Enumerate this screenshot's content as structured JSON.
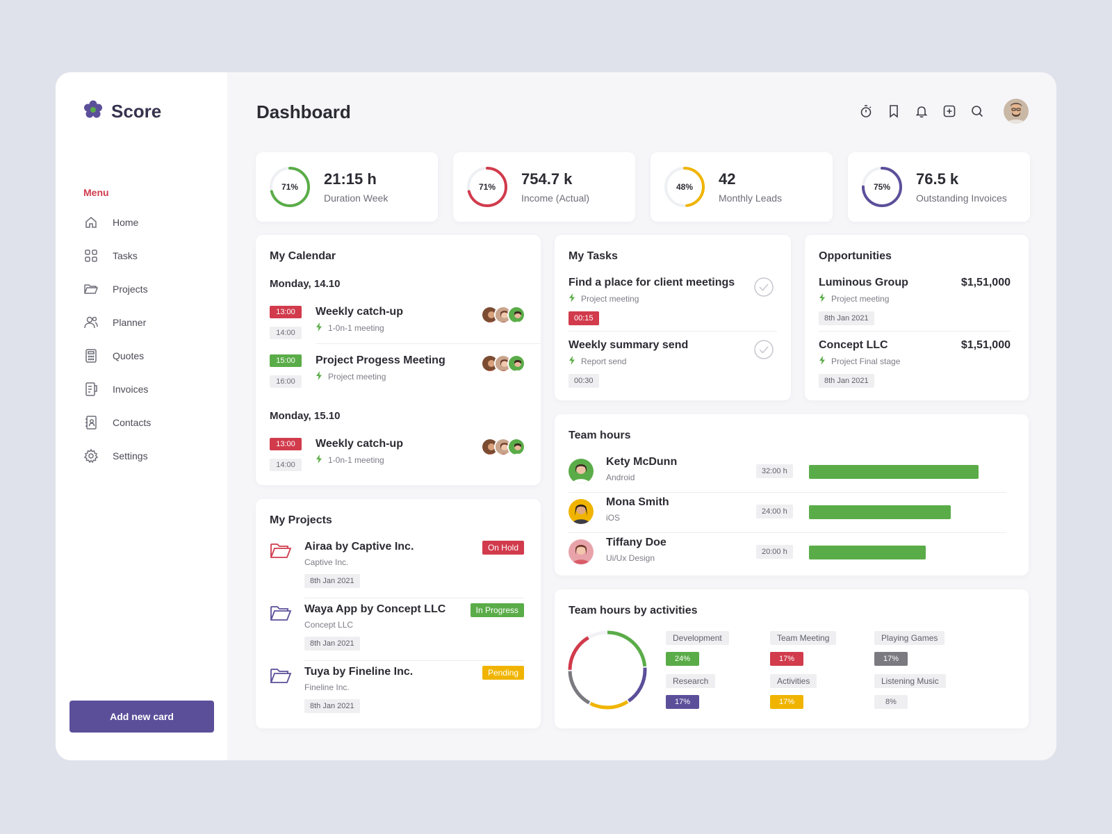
{
  "brand": {
    "name": "Score",
    "color": "#5c4f9a"
  },
  "sidebar": {
    "menu_label": "Menu",
    "items": [
      {
        "label": "Home",
        "icon": "home-icon"
      },
      {
        "label": "Tasks",
        "icon": "grid-icon"
      },
      {
        "label": "Projects",
        "icon": "folder-icon"
      },
      {
        "label": "Planner",
        "icon": "users-icon"
      },
      {
        "label": "Quotes",
        "icon": "calculator-icon"
      },
      {
        "label": "Invoices",
        "icon": "invoice-icon"
      },
      {
        "label": "Contacts",
        "icon": "contacts-icon"
      },
      {
        "label": "Settings",
        "icon": "gear-icon"
      }
    ],
    "add_button": "Add new card"
  },
  "header": {
    "title": "Dashboard",
    "icons": [
      "timer-icon",
      "bookmark-icon",
      "bell-icon",
      "add-square-icon",
      "search-icon"
    ]
  },
  "kpis": [
    {
      "percent_label": "71%",
      "percent": 71,
      "color": "#5aac48",
      "value": "21:15 h",
      "label": "Duration Week"
    },
    {
      "percent_label": "71%",
      "percent": 71,
      "color": "#d13b4c",
      "value": "754.7 k",
      "label": "Income (Actual)"
    },
    {
      "percent_label": "48%",
      "percent": 48,
      "color": "#f0b400",
      "value": "42",
      "label": "Monthly Leads"
    },
    {
      "percent_label": "75%",
      "percent": 75,
      "color": "#5c4f9a",
      "value": "76.5 k",
      "label": "Outstanding Invoices"
    }
  ],
  "calendar": {
    "title": "My Calendar",
    "days": [
      {
        "label": "Monday, 14.10",
        "events": [
          {
            "start": "13:00",
            "end": "14:00",
            "start_color": "#d13b4c",
            "title": "Weekly catch-up",
            "sub": "1-0n-1 meeting"
          },
          {
            "start": "15:00",
            "end": "16:00",
            "start_color": "#5aac48",
            "title": "Project Progess Meeting",
            "sub": "Project meeting"
          }
        ]
      },
      {
        "label": "Monday, 15.10",
        "events": [
          {
            "start": "13:00",
            "end": "14:00",
            "start_color": "#d13b4c",
            "title": "Weekly catch-up",
            "sub": "1-0n-1 meeting"
          }
        ]
      }
    ]
  },
  "tasks": {
    "title": "My Tasks",
    "items": [
      {
        "title": "Find a place for client meetings",
        "sub": "Project meeting",
        "time": "00:15"
      },
      {
        "title": "Weekly summary send",
        "sub": "Report send",
        "time": "00:30"
      }
    ]
  },
  "opportunities": {
    "title": "Opportunities",
    "items": [
      {
        "name": "Luminous Group",
        "amount": "$1,51,000",
        "sub": "Project meeting",
        "date": "8th Jan 2021"
      },
      {
        "name": "Concept LLC",
        "amount": "$1,51,000",
        "sub": "Project Final stage",
        "date": "8th Jan 2021"
      }
    ]
  },
  "team_hours": {
    "title": "Team hours",
    "members": [
      {
        "name": "Kety McDunn",
        "role": "Android",
        "hours": "32:00 h",
        "fraction": 0.86
      },
      {
        "name": "Mona Smith",
        "role": "iOS",
        "hours": "24:00 h",
        "fraction": 0.72
      },
      {
        "name": "Tiffany Doe",
        "role": "Ui/Ux Design",
        "hours": "20:00 h",
        "fraction": 0.59
      }
    ]
  },
  "projects": {
    "title": "My Projects",
    "items": [
      {
        "title": "Airaa by Captive Inc.",
        "sub": "Captive Inc.",
        "date": "8th Jan 2021",
        "status": "On Hold",
        "status_color": "#d13b4c",
        "icon_color": "#d13b4c"
      },
      {
        "title": "Waya App by Concept LLC",
        "sub": "Concept LLC",
        "date": "8th Jan 2021",
        "status": "In Progress",
        "status_color": "#5aac48",
        "icon_color": "#5c4f9a"
      },
      {
        "title": "Tuya by Fineline Inc.",
        "sub": "Fineline Inc.",
        "date": "8th Jan 2021",
        "status": "Pending",
        "status_color": "#f0b400",
        "icon_color": "#5c4f9a"
      }
    ]
  },
  "activities": {
    "title": "Team hours by activities",
    "items": [
      {
        "name": "Development",
        "pct": "24%",
        "value": 24,
        "color": "#5aac48",
        "pct_text_color": "#ffffff"
      },
      {
        "name": "Team Meeting",
        "pct": "17%",
        "value": 17,
        "color": "#d13b4c",
        "pct_text_color": "#ffffff"
      },
      {
        "name": "Playing Games",
        "pct": "17%",
        "value": 17,
        "color": "#7a7a80",
        "pct_text_color": "#ffffff"
      },
      {
        "name": "Research",
        "pct": "17%",
        "value": 17,
        "color": "#5c4f9a",
        "pct_text_color": "#ffffff"
      },
      {
        "name": "Activities",
        "pct": "17%",
        "value": 17,
        "color": "#f0b400",
        "pct_text_color": "#ffffff"
      },
      {
        "name": "Listening Music",
        "pct": "8%",
        "value": 8,
        "color": "#efeff2",
        "pct_text_color": "#5e5e69"
      }
    ]
  }
}
